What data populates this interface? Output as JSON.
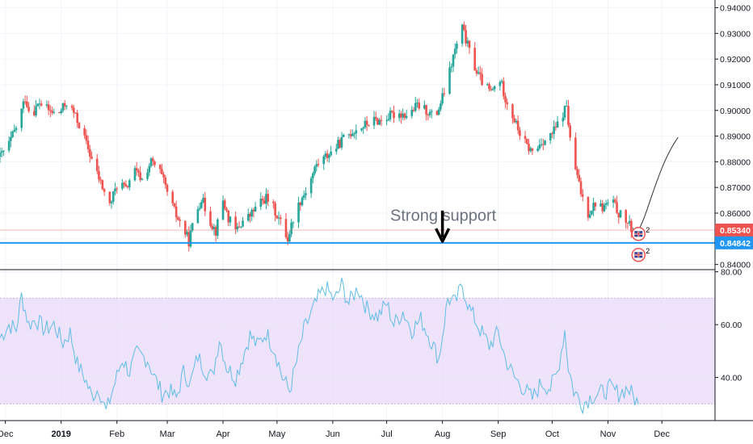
{
  "chart_data": {
    "type": "candlestick",
    "price_axis": {
      "ylim": [
        0.838,
        0.943
      ],
      "ticks": [
        "0.94000",
        "0.93000",
        "0.92000",
        "0.91000",
        "0.90000",
        "0.89000",
        "0.88000",
        "0.87000",
        "0.86000",
        "0.85000",
        "0.84000"
      ],
      "tick_values": [
        0.94,
        0.93,
        0.92,
        0.91,
        0.9,
        0.89,
        0.88,
        0.87,
        0.86,
        0.85,
        0.84
      ]
    },
    "price_labels": [
      {
        "text": "0.85340",
        "value": 0.8534,
        "color": "#ef5350"
      },
      {
        "text": "0.84842",
        "value": 0.84842,
        "color": "#2196f3"
      }
    ],
    "support_line": {
      "value": 0.84842,
      "color": "#2196f3"
    },
    "current_price_line": {
      "value": 0.8534,
      "color": "#ef5350"
    },
    "annotation": {
      "text": "Strong support",
      "arrow": "down-arrow",
      "date": "2019-08-01"
    },
    "projection": {
      "from_date": "2019-11-18",
      "from_value": 0.8534,
      "to_date": "2019-12-10",
      "to_value": 0.8895
    },
    "event_markers": [
      {
        "count": "2",
        "icon": "uk-flag-icon",
        "date": "2019-11-18"
      },
      {
        "count": "2",
        "icon": "uk-flag-icon",
        "date": "2019-11-18"
      }
    ],
    "time_axis": {
      "start": "2018-11-28",
      "end": "2019-12-31",
      "labels": [
        {
          "text": "Dec",
          "date": "2018-12-01"
        },
        {
          "text": "2019",
          "date": "2019-01-01"
        },
        {
          "text": "Feb",
          "date": "2019-02-01"
        },
        {
          "text": "Mar",
          "date": "2019-03-01"
        },
        {
          "text": "Apr",
          "date": "2019-04-01"
        },
        {
          "text": "May",
          "date": "2019-05-01"
        },
        {
          "text": "Jun",
          "date": "2019-06-01"
        },
        {
          "text": "Jul",
          "date": "2019-07-01"
        },
        {
          "text": "Aug",
          "date": "2019-08-01"
        },
        {
          "text": "Sep",
          "date": "2019-09-01"
        },
        {
          "text": "Oct",
          "date": "2019-10-01"
        },
        {
          "text": "Nov",
          "date": "2019-11-01"
        },
        {
          "text": "Dec",
          "date": "2019-12-01"
        }
      ]
    },
    "price_path": [
      [
        "2018-11-28",
        0.882
      ],
      [
        "2018-12-03",
        0.887
      ],
      [
        "2018-12-08",
        0.895
      ],
      [
        "2018-12-12",
        0.905
      ],
      [
        "2018-12-15",
        0.898
      ],
      [
        "2018-12-20",
        0.903
      ],
      [
        "2018-12-25",
        0.9
      ],
      [
        "2018-12-30",
        0.898
      ],
      [
        "2019-01-04",
        0.903
      ],
      [
        "2019-01-08",
        0.899
      ],
      [
        "2019-01-12",
        0.893
      ],
      [
        "2019-01-16",
        0.885
      ],
      [
        "2019-01-20",
        0.877
      ],
      [
        "2019-01-24",
        0.87
      ],
      [
        "2019-01-28",
        0.863
      ],
      [
        "2019-02-02",
        0.873
      ],
      [
        "2019-02-06",
        0.869
      ],
      [
        "2019-02-10",
        0.877
      ],
      [
        "2019-02-15",
        0.873
      ],
      [
        "2019-02-20",
        0.88
      ],
      [
        "2019-02-25",
        0.876
      ],
      [
        "2019-03-02",
        0.866
      ],
      [
        "2019-03-06",
        0.859
      ],
      [
        "2019-03-10",
        0.854
      ],
      [
        "2019-03-13",
        0.849
      ],
      [
        "2019-03-16",
        0.858
      ],
      [
        "2019-03-20",
        0.866
      ],
      [
        "2019-03-24",
        0.858
      ],
      [
        "2019-03-28",
        0.853
      ],
      [
        "2019-04-01",
        0.865
      ],
      [
        "2019-04-04",
        0.858
      ],
      [
        "2019-04-08",
        0.853
      ],
      [
        "2019-04-12",
        0.857
      ],
      [
        "2019-04-16",
        0.859
      ],
      [
        "2019-04-20",
        0.863
      ],
      [
        "2019-04-25",
        0.866
      ],
      [
        "2019-04-29",
        0.862
      ],
      [
        "2019-05-04",
        0.855
      ],
      [
        "2019-05-07",
        0.85
      ],
      [
        "2019-05-10",
        0.858
      ],
      [
        "2019-05-14",
        0.865
      ],
      [
        "2019-05-18",
        0.87
      ],
      [
        "2019-05-23",
        0.879
      ],
      [
        "2019-05-28",
        0.882
      ],
      [
        "2019-06-02",
        0.885
      ],
      [
        "2019-06-07",
        0.889
      ],
      [
        "2019-06-12",
        0.892
      ],
      [
        "2019-06-18",
        0.894
      ],
      [
        "2019-06-23",
        0.896
      ],
      [
        "2019-06-28",
        0.896
      ],
      [
        "2019-07-03",
        0.898
      ],
      [
        "2019-07-08",
        0.899
      ],
      [
        "2019-07-13",
        0.898
      ],
      [
        "2019-07-18",
        0.902
      ],
      [
        "2019-07-23",
        0.9
      ],
      [
        "2019-07-28",
        0.897
      ],
      [
        "2019-08-01",
        0.905
      ],
      [
        "2019-08-04",
        0.912
      ],
      [
        "2019-08-07",
        0.921
      ],
      [
        "2019-08-10",
        0.928
      ],
      [
        "2019-08-12",
        0.932
      ],
      [
        "2019-08-16",
        0.923
      ],
      [
        "2019-08-20",
        0.915
      ],
      [
        "2019-08-24",
        0.91
      ],
      [
        "2019-08-28",
        0.907
      ],
      [
        "2019-09-02",
        0.912
      ],
      [
        "2019-09-05",
        0.905
      ],
      [
        "2019-09-09",
        0.898
      ],
      [
        "2019-09-13",
        0.891
      ],
      [
        "2019-09-17",
        0.886
      ],
      [
        "2019-09-21",
        0.883
      ],
      [
        "2019-09-25",
        0.888
      ],
      [
        "2019-09-29",
        0.889
      ],
      [
        "2019-10-03",
        0.893
      ],
      [
        "2019-10-06",
        0.897
      ],
      [
        "2019-10-09",
        0.902
      ],
      [
        "2019-10-11",
        0.888
      ],
      [
        "2019-10-14",
        0.877
      ],
      [
        "2019-10-17",
        0.868
      ],
      [
        "2019-10-21",
        0.86
      ],
      [
        "2019-10-25",
        0.864
      ],
      [
        "2019-10-29",
        0.862
      ],
      [
        "2019-11-03",
        0.865
      ],
      [
        "2019-11-07",
        0.86
      ],
      [
        "2019-11-11",
        0.857
      ],
      [
        "2019-11-15",
        0.853
      ],
      [
        "2019-11-18",
        0.8534
      ]
    ],
    "rsi": {
      "ticks": [
        "80.00",
        "60.00",
        "40.00"
      ],
      "tick_values": [
        80,
        60,
        40
      ],
      "ylim": [
        24,
        80.5
      ],
      "band": [
        30,
        70
      ],
      "line_color": "#5fbde8",
      "band_color": "#ead9fa",
      "values": [
        [
          "2018-11-28",
          55
        ],
        [
          "2018-12-03",
          60
        ],
        [
          "2018-12-07",
          58
        ],
        [
          "2018-12-10",
          71
        ],
        [
          "2018-12-14",
          60
        ],
        [
          "2018-12-18",
          62
        ],
        [
          "2018-12-23",
          58
        ],
        [
          "2018-12-28",
          60
        ],
        [
          "2019-01-02",
          53
        ],
        [
          "2019-01-06",
          57
        ],
        [
          "2019-01-10",
          45
        ],
        [
          "2019-01-14",
          40
        ],
        [
          "2019-01-18",
          33
        ],
        [
          "2019-01-22",
          36
        ],
        [
          "2019-01-26",
          27
        ],
        [
          "2019-01-30",
          36
        ],
        [
          "2019-02-04",
          47
        ],
        [
          "2019-02-08",
          42
        ],
        [
          "2019-02-12",
          49
        ],
        [
          "2019-02-18",
          47
        ],
        [
          "2019-02-22",
          40
        ],
        [
          "2019-02-26",
          34
        ],
        [
          "2019-03-02",
          35
        ],
        [
          "2019-03-06",
          32
        ],
        [
          "2019-03-10",
          42
        ],
        [
          "2019-03-14",
          38
        ],
        [
          "2019-03-18",
          48
        ],
        [
          "2019-03-22",
          43
        ],
        [
          "2019-03-26",
          40
        ],
        [
          "2019-03-30",
          55
        ],
        [
          "2019-04-03",
          44
        ],
        [
          "2019-04-08",
          40
        ],
        [
          "2019-04-12",
          48
        ],
        [
          "2019-04-16",
          56
        ],
        [
          "2019-04-20",
          52
        ],
        [
          "2019-04-25",
          57
        ],
        [
          "2019-04-30",
          50
        ],
        [
          "2019-05-04",
          40
        ],
        [
          "2019-05-08",
          35
        ],
        [
          "2019-05-12",
          46
        ],
        [
          "2019-05-16",
          58
        ],
        [
          "2019-05-20",
          64
        ],
        [
          "2019-05-24",
          70
        ],
        [
          "2019-05-28",
          74
        ],
        [
          "2019-06-02",
          69
        ],
        [
          "2019-06-06",
          75
        ],
        [
          "2019-06-10",
          68
        ],
        [
          "2019-06-15",
          74
        ],
        [
          "2019-06-20",
          66
        ],
        [
          "2019-06-26",
          63
        ],
        [
          "2019-07-01",
          68
        ],
        [
          "2019-07-05",
          60
        ],
        [
          "2019-07-10",
          65
        ],
        [
          "2019-07-15",
          58
        ],
        [
          "2019-07-20",
          62
        ],
        [
          "2019-07-25",
          55
        ],
        [
          "2019-07-30",
          47
        ],
        [
          "2019-08-04",
          70
        ],
        [
          "2019-08-08",
          68
        ],
        [
          "2019-08-12",
          75
        ],
        [
          "2019-08-16",
          66
        ],
        [
          "2019-08-22",
          58
        ],
        [
          "2019-08-27",
          52
        ],
        [
          "2019-09-01",
          57
        ],
        [
          "2019-09-05",
          47
        ],
        [
          "2019-09-10",
          40
        ],
        [
          "2019-09-15",
          36
        ],
        [
          "2019-09-20",
          32
        ],
        [
          "2019-09-25",
          38
        ],
        [
          "2019-09-30",
          36
        ],
        [
          "2019-10-04",
          42
        ],
        [
          "2019-10-08",
          58
        ],
        [
          "2019-10-10",
          44
        ],
        [
          "2019-10-13",
          35
        ],
        [
          "2019-10-18",
          30
        ],
        [
          "2019-10-23",
          33
        ],
        [
          "2019-10-28",
          34
        ],
        [
          "2019-11-02",
          36
        ],
        [
          "2019-11-07",
          34
        ],
        [
          "2019-11-12",
          36
        ],
        [
          "2019-11-18",
          30
        ]
      ]
    }
  }
}
